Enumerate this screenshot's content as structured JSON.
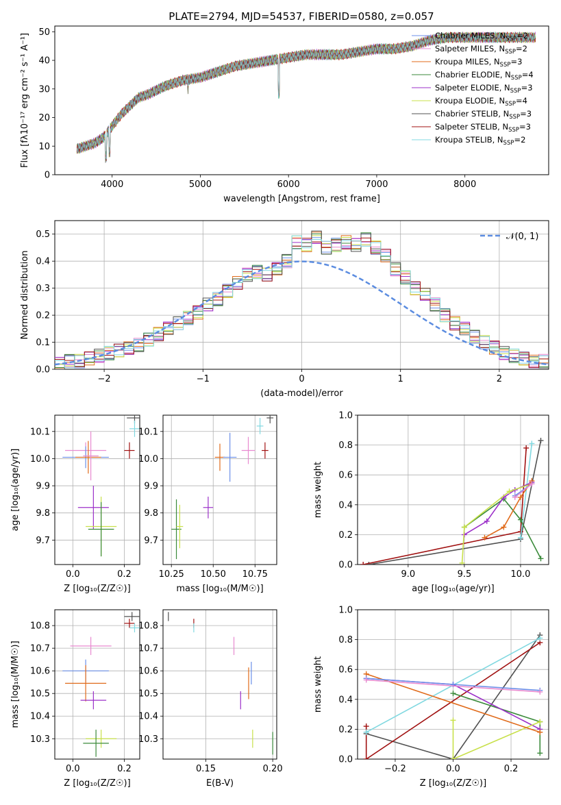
{
  "figure": {
    "title": "PLATE=2794, MJD=54537, FIBERID=0580, z=0.057"
  },
  "chart_data": [
    {
      "id": "spectrum",
      "type": "line",
      "xlabel": "wavelength [Angstrom, rest frame]",
      "ylabel": "Flux [fλ10⁻¹⁷ erg cm⁻² s⁻¹ A⁻¹]",
      "xlim": [
        3350,
        8950
      ],
      "ylim": [
        0,
        52
      ],
      "xticks": [
        4000,
        5000,
        6000,
        7000,
        8000
      ],
      "yticks": [
        0,
        10,
        20,
        30,
        40,
        50
      ],
      "grid": false,
      "legend_position": "top-right",
      "x": [
        3600,
        3700,
        3800,
        3900,
        4000,
        4100,
        4200,
        4300,
        4400,
        4600,
        4800,
        5000,
        5200,
        5400,
        5600,
        5800,
        6000,
        6200,
        6400,
        6600,
        6800,
        7000,
        7200,
        7400,
        7600,
        7800,
        8000,
        8200,
        8400,
        8600,
        8800
      ],
      "flux": [
        9,
        10,
        11,
        13,
        17,
        21,
        24,
        27,
        28,
        31,
        33,
        34,
        36,
        38,
        39,
        40,
        41,
        42,
        42,
        42,
        43,
        44,
        44,
        45,
        47,
        48,
        48,
        48,
        48,
        48,
        48
      ],
      "series": [
        {
          "name": "Chabrier MILES, N",
          "sub": "SSP",
          "count": "=2",
          "color": "#6b8fe8"
        },
        {
          "name": "Salpeter MILES, N",
          "sub": "SSP",
          "count": "=2",
          "color": "#e88ad0"
        },
        {
          "name": "Kroupa MILES, N",
          "sub": "SSP",
          "count": "=3",
          "color": "#e06a1a"
        },
        {
          "name": "Chabrier ELODIE, N",
          "sub": "SSP",
          "count": "=4",
          "color": "#3a8a3a"
        },
        {
          "name": "Salpeter ELODIE, N",
          "sub": "SSP",
          "count": "=3",
          "color": "#9b2fc9"
        },
        {
          "name": "Kroupa ELODIE, N",
          "sub": "SSP",
          "count": "=4",
          "color": "#c8e04a"
        },
        {
          "name": "Chabrier STELIB, N",
          "sub": "SSP",
          "count": "=3",
          "color": "#505050"
        },
        {
          "name": "Salpeter STELIB, N",
          "sub": "SSP",
          "count": "=3",
          "color": "#a01010"
        },
        {
          "name": "Kroupa STELIB, N",
          "sub": "SSP",
          "count": "=2",
          "color": "#80d8e0"
        }
      ]
    },
    {
      "id": "residuals",
      "type": "bar",
      "xlabel": "(data-model)/error",
      "ylabel": "Normed distribution",
      "xlim": [
        -2.5,
        2.5
      ],
      "ylim": [
        0,
        0.55
      ],
      "xticks": [
        -2,
        -1,
        0,
        1,
        2
      ],
      "yticks": [
        0.0,
        0.1,
        0.2,
        0.3,
        0.4,
        0.5
      ],
      "grid": true,
      "legend_position": "top-right",
      "reference_curve": {
        "name": "𝒩(0, 1)",
        "color": "#5b8ce0"
      },
      "bin_width": 0.1,
      "hist_values": [
        0.02,
        0.03,
        0.03,
        0.04,
        0.05,
        0.06,
        0.07,
        0.08,
        0.09,
        0.11,
        0.13,
        0.15,
        0.17,
        0.19,
        0.21,
        0.24,
        0.26,
        0.29,
        0.32,
        0.35,
        0.36,
        0.35,
        0.37,
        0.4,
        0.47,
        0.46,
        0.49,
        0.45,
        0.46,
        0.47,
        0.46,
        0.48,
        0.45,
        0.42,
        0.37,
        0.34,
        0.3,
        0.28,
        0.24,
        0.2,
        0.17,
        0.15,
        0.12,
        0.1,
        0.08,
        0.06,
        0.05,
        0.04,
        0.03,
        0.03
      ]
    },
    {
      "id": "age-vs-Z",
      "type": "scatter",
      "xlabel": "Z [log₁₀(Z/Z☉)]",
      "ylabel": "age  [log₁₀(age/yr)]",
      "xlim": [
        -0.07,
        0.26
      ],
      "ylim": [
        9.61,
        10.16
      ],
      "xticks": [
        0.0,
        0.2
      ],
      "yticks": [
        9.7,
        9.8,
        9.9,
        10.0,
        10.1
      ],
      "grid": true,
      "points": [
        {
          "x": 0.05,
          "y": 10.03,
          "xerr": 0.08,
          "yerr": 0.03,
          "color": "#e88ad0"
        },
        {
          "x": 0.05,
          "y": 10.005,
          "xerr": 0.09,
          "yerr": 0.04,
          "color": "#6b8fe8"
        },
        {
          "x": 0.06,
          "y": 10.005,
          "xerr": 0.05,
          "yerr": 0.06,
          "color": "#e06a1a"
        },
        {
          "x": 0.07,
          "y": 10.01,
          "xerr": 0.03,
          "yerr": 0.09,
          "color": "#e88ad0"
        },
        {
          "x": 0.08,
          "y": 9.82,
          "xerr": 0.06,
          "yerr": 0.08,
          "color": "#9b2fc9"
        },
        {
          "x": 0.11,
          "y": 9.75,
          "xerr": 0.06,
          "yerr": 0.11,
          "color": "#c8e04a"
        },
        {
          "x": 0.11,
          "y": 9.74,
          "xerr": 0.05,
          "yerr": 0.1,
          "color": "#3a8a3a"
        },
        {
          "x": 0.22,
          "y": 10.03,
          "xerr": 0.02,
          "yerr": 0.03,
          "color": "#a01010"
        },
        {
          "x": 0.24,
          "y": 10.15,
          "xerr": 0.03,
          "yerr": 0.02,
          "color": "#505050"
        },
        {
          "x": 0.24,
          "y": 10.11,
          "xerr": 0.02,
          "yerr": 0.03,
          "color": "#80d8e0"
        }
      ]
    },
    {
      "id": "age-vs-mass",
      "type": "scatter",
      "xlabel": "mass [log₁₀(M/M☉)]",
      "ylabel": "",
      "xlim": [
        10.2,
        10.88
      ],
      "ylim": [
        9.61,
        10.16
      ],
      "xticks": [
        10.25,
        10.5,
        10.75
      ],
      "yticks": [
        9.7,
        9.8,
        9.9,
        10.0,
        10.1
      ],
      "grid": true,
      "points": [
        {
          "x": 10.28,
          "y": 9.74,
          "xerr": 0.03,
          "yerr": 0.11,
          "color": "#3a8a3a"
        },
        {
          "x": 10.3,
          "y": 9.75,
          "xerr": 0.02,
          "yerr": 0.08,
          "color": "#c8e04a"
        },
        {
          "x": 10.47,
          "y": 9.82,
          "xerr": 0.03,
          "yerr": 0.04,
          "color": "#9b2fc9"
        },
        {
          "x": 10.54,
          "y": 10.005,
          "xerr": 0.03,
          "yerr": 0.05,
          "color": "#e06a1a"
        },
        {
          "x": 10.6,
          "y": 10.005,
          "xerr": 0.04,
          "yerr": 0.09,
          "color": "#6b8fe8"
        },
        {
          "x": 10.71,
          "y": 10.03,
          "xerr": 0.04,
          "yerr": 0.05,
          "color": "#e88ad0"
        },
        {
          "x": 10.78,
          "y": 10.12,
          "xerr": 0.02,
          "yerr": 0.03,
          "color": "#80d8e0"
        },
        {
          "x": 10.81,
          "y": 10.03,
          "xerr": 0.02,
          "yerr": 0.03,
          "color": "#a01010"
        },
        {
          "x": 10.84,
          "y": 10.15,
          "xerr": 0.02,
          "yerr": 0.02,
          "color": "#505050"
        }
      ]
    },
    {
      "id": "mass-weight-vs-age",
      "type": "line",
      "xlabel": "age  [log₁₀(age/yr)]",
      "ylabel": "mass weight",
      "xlim": [
        8.55,
        10.25
      ],
      "ylim": [
        0,
        1
      ],
      "xticks": [
        9.0,
        9.5,
        10.0
      ],
      "yticks": [
        0.0,
        0.2,
        0.4,
        0.6,
        0.8,
        1.0
      ],
      "grid": true,
      "series": [
        {
          "color": "#505050",
          "x": [
            8.65,
            10.0,
            10.18
          ],
          "y": [
            0.0,
            0.17,
            0.83
          ]
        },
        {
          "color": "#a01010",
          "x": [
            8.6,
            10.0,
            10.05
          ],
          "y": [
            0.0,
            0.22,
            0.78
          ]
        },
        {
          "color": "#80d8e0",
          "x": [
            10.0,
            10.1
          ],
          "y": [
            0.18,
            0.81
          ]
        },
        {
          "color": "#3a8a3a",
          "x": [
            9.5,
            9.85,
            10.0,
            10.18
          ],
          "y": [
            0.25,
            0.44,
            0.3,
            0.04
          ]
        },
        {
          "color": "#9b2fc9",
          "x": [
            9.5,
            9.7,
            9.85,
            9.95,
            10.1
          ],
          "y": [
            0.2,
            0.29,
            0.45,
            0.5,
            0.55
          ]
        },
        {
          "color": "#c8e04a",
          "x": [
            9.48,
            9.5,
            9.9,
            10.1
          ],
          "y": [
            0.01,
            0.25,
            0.49,
            0.54
          ]
        },
        {
          "color": "#e06a1a",
          "x": [
            9.68,
            9.85,
            10.0,
            10.1
          ],
          "y": [
            0.18,
            0.25,
            0.45,
            0.56
          ]
        },
        {
          "color": "#6b8fe8",
          "x": [
            9.95,
            10.1
          ],
          "y": [
            0.46,
            0.54
          ]
        },
        {
          "color": "#e88ad0",
          "x": [
            9.95,
            10.1
          ],
          "y": [
            0.45,
            0.54
          ]
        }
      ]
    },
    {
      "id": "mass-vs-Z",
      "type": "scatter",
      "xlabel": "Z [log₁₀(Z/Z☉)]",
      "ylabel": "mass [log₁₀(M/M☉)]",
      "xlim": [
        -0.07,
        0.26
      ],
      "ylim": [
        10.21,
        10.87
      ],
      "xticks": [
        0.0,
        0.2
      ],
      "yticks": [
        10.3,
        10.4,
        10.5,
        10.6,
        10.7,
        10.8
      ],
      "grid": true,
      "points": [
        {
          "x": 0.07,
          "y": 10.71,
          "xerr": 0.08,
          "yerr": 0.04,
          "color": "#e88ad0"
        },
        {
          "x": 0.05,
          "y": 10.6,
          "xerr": 0.09,
          "yerr": 0.05,
          "color": "#6b8fe8"
        },
        {
          "x": 0.05,
          "y": 10.545,
          "xerr": 0.08,
          "yerr": 0.08,
          "color": "#e06a1a"
        },
        {
          "x": 0.08,
          "y": 10.47,
          "xerr": 0.05,
          "yerr": 0.04,
          "color": "#9b2fc9"
        },
        {
          "x": 0.11,
          "y": 10.3,
          "xerr": 0.06,
          "yerr": 0.04,
          "color": "#c8e04a"
        },
        {
          "x": 0.09,
          "y": 10.28,
          "xerr": 0.05,
          "yerr": 0.06,
          "color": "#3a8a3a"
        },
        {
          "x": 0.22,
          "y": 10.81,
          "xerr": 0.02,
          "yerr": 0.02,
          "color": "#a01010"
        },
        {
          "x": 0.23,
          "y": 10.84,
          "xerr": 0.03,
          "yerr": 0.02,
          "color": "#505050"
        },
        {
          "x": 0.24,
          "y": 10.79,
          "xerr": 0.02,
          "yerr": 0.02,
          "color": "#80d8e0"
        }
      ]
    },
    {
      "id": "mass-vs-ebv",
      "type": "scatter",
      "xlabel": "E(B-V)",
      "ylabel": "",
      "xlim": [
        0.118,
        0.203
      ],
      "ylim": [
        10.21,
        10.87
      ],
      "xticks": [
        0.15,
        0.2
      ],
      "yticks": [
        10.3,
        10.4,
        10.5,
        10.6,
        10.7,
        10.8
      ],
      "grid": true,
      "points": [
        {
          "x": 0.122,
          "y": 10.84,
          "yerr": 0.02,
          "color": "#505050"
        },
        {
          "x": 0.141,
          "y": 10.81,
          "yerr": 0.02,
          "color": "#a01010"
        },
        {
          "x": 0.141,
          "y": 10.79,
          "yerr": 0.02,
          "color": "#80d8e0"
        },
        {
          "x": 0.171,
          "y": 10.71,
          "yerr": 0.04,
          "color": "#e88ad0"
        },
        {
          "x": 0.176,
          "y": 10.47,
          "yerr": 0.04,
          "color": "#9b2fc9"
        },
        {
          "x": 0.182,
          "y": 10.545,
          "yerr": 0.07,
          "color": "#e06a1a"
        },
        {
          "x": 0.184,
          "y": 10.59,
          "yerr": 0.05,
          "color": "#6b8fe8"
        },
        {
          "x": 0.185,
          "y": 10.3,
          "yerr": 0.04,
          "color": "#c8e04a"
        },
        {
          "x": 0.2,
          "y": 10.28,
          "yerr": 0.05,
          "color": "#3a8a3a"
        }
      ]
    },
    {
      "id": "mass-weight-vs-Z",
      "type": "line",
      "xlabel": "Z [log₁₀(Z/Z☉)]",
      "ylabel": "mass weight",
      "xlim": [
        -0.33,
        0.33
      ],
      "ylim": [
        0,
        1
      ],
      "xticks": [
        -0.2,
        0.0,
        0.2
      ],
      "yticks": [
        0.0,
        0.2,
        0.4,
        0.6,
        0.8,
        1.0
      ],
      "grid": true,
      "series": [
        {
          "color": "#505050",
          "x": [
            -0.3,
            0.0,
            0.3
          ],
          "y": [
            0.17,
            0.0,
            0.83
          ]
        },
        {
          "color": "#a01010",
          "x": [
            -0.3,
            -0.3,
            0.3
          ],
          "y": [
            0.22,
            0.0,
            0.78
          ]
        },
        {
          "color": "#80d8e0",
          "x": [
            -0.3,
            0.3
          ],
          "y": [
            0.18,
            0.81
          ]
        },
        {
          "color": "#3a8a3a",
          "x": [
            0.0,
            0.3,
            0.3
          ],
          "y": [
            0.44,
            0.25,
            0.04
          ]
        },
        {
          "color": "#9b2fc9",
          "x": [
            -0.3,
            0.0,
            0.3
          ],
          "y": [
            0.54,
            0.5,
            0.2
          ]
        },
        {
          "color": "#c8e04a",
          "x": [
            0.0,
            0.0,
            0.3
          ],
          "y": [
            0.26,
            0.0,
            0.25
          ]
        },
        {
          "color": "#e06a1a",
          "x": [
            -0.3,
            0.3
          ],
          "y": [
            0.57,
            0.18
          ]
        },
        {
          "color": "#6b8fe8",
          "x": [
            -0.3,
            0.0,
            0.3
          ],
          "y": [
            0.54,
            0.5,
            0.46
          ]
        },
        {
          "color": "#e88ad0",
          "x": [
            -0.3,
            0.3
          ],
          "y": [
            0.53,
            0.45
          ]
        }
      ]
    }
  ]
}
